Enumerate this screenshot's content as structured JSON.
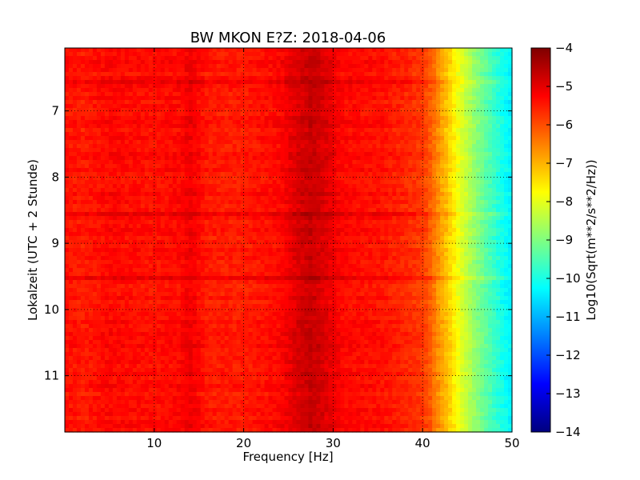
{
  "chart_data": {
    "type": "heatmap",
    "title": "BW MKON E?Z: 2018-04-06",
    "xlabel": "Frequency [Hz]",
    "ylabel": "Lokalzeit (UTC + 2 Stunde)",
    "xlim": [
      0,
      50
    ],
    "ylim": [
      11.85,
      6.05
    ],
    "y_inverted": true,
    "x_ticks": [
      10,
      20,
      30,
      40,
      50
    ],
    "x_tick_labels": [
      "10",
      "20",
      "30",
      "40",
      "50"
    ],
    "y_ticks": [
      7,
      8,
      9,
      10,
      11
    ],
    "y_tick_labels": [
      "7",
      "8",
      "9",
      "10",
      "11"
    ],
    "grid": true,
    "colormap": "jet",
    "colorbar": {
      "label": "Log10(Sqrt(m**2/s**2/Hz))",
      "min": -14,
      "max": -4,
      "ticks": [
        -4,
        -5,
        -6,
        -7,
        -8,
        -9,
        -10,
        -11,
        -12,
        -13,
        -14
      ],
      "tick_labels": [
        "−4",
        "−5",
        "−6",
        "−7",
        "−8",
        "−9",
        "−10",
        "−11",
        "−12",
        "−13",
        "−14"
      ]
    },
    "spectrum_profile": {
      "frequency_hz": [
        0,
        2,
        5,
        10,
        13,
        14,
        16,
        20,
        24,
        26,
        27.5,
        29,
        31,
        35,
        38,
        40,
        41,
        42,
        43,
        44,
        45,
        46,
        47,
        48,
        49,
        50
      ],
      "log_amplitude": [
        -5.4,
        -5.5,
        -5.3,
        -5.4,
        -5.3,
        -5.1,
        -5.5,
        -5.5,
        -5.3,
        -4.9,
        -4.7,
        -4.9,
        -5.3,
        -5.4,
        -5.6,
        -5.8,
        -6.2,
        -6.8,
        -7.3,
        -7.9,
        -8.4,
        -8.9,
        -9.3,
        -9.7,
        -10.1,
        -10.4
      ]
    }
  }
}
